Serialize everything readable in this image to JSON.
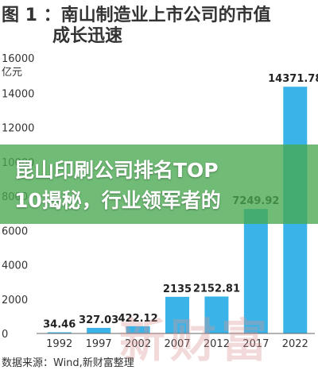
{
  "chart_data": {
    "type": "bar",
    "title_line1": "图 1 ：南山制造业上市公司的市值",
    "title_line2": "成长迅速",
    "y_unit_line1": "16000",
    "y_unit_line2": "亿元",
    "categories": [
      "1992",
      "1997",
      "2002",
      "2007",
      "2012",
      "2017",
      "2022"
    ],
    "values": [
      34.46,
      327.03,
      422.12,
      2135,
      2152.81,
      7249.92,
      14371.78
    ],
    "value_labels": [
      "34.46",
      "327.03",
      "422.12",
      "2135",
      "2152.81",
      "7249.92",
      "14371.78"
    ],
    "yticks": [
      0,
      2000,
      4000,
      6000,
      8000,
      10000,
      12000,
      14000
    ],
    "ylim": [
      0,
      16000
    ],
    "grid": false,
    "bar_color": "#3ab4e8",
    "source": "数据来源：Wind,新财富整理"
  },
  "banner": {
    "line1": "昆山印刷公司排名TOP",
    "line2": "10揭秘，行业领军者的"
  },
  "watermark": "新财富"
}
